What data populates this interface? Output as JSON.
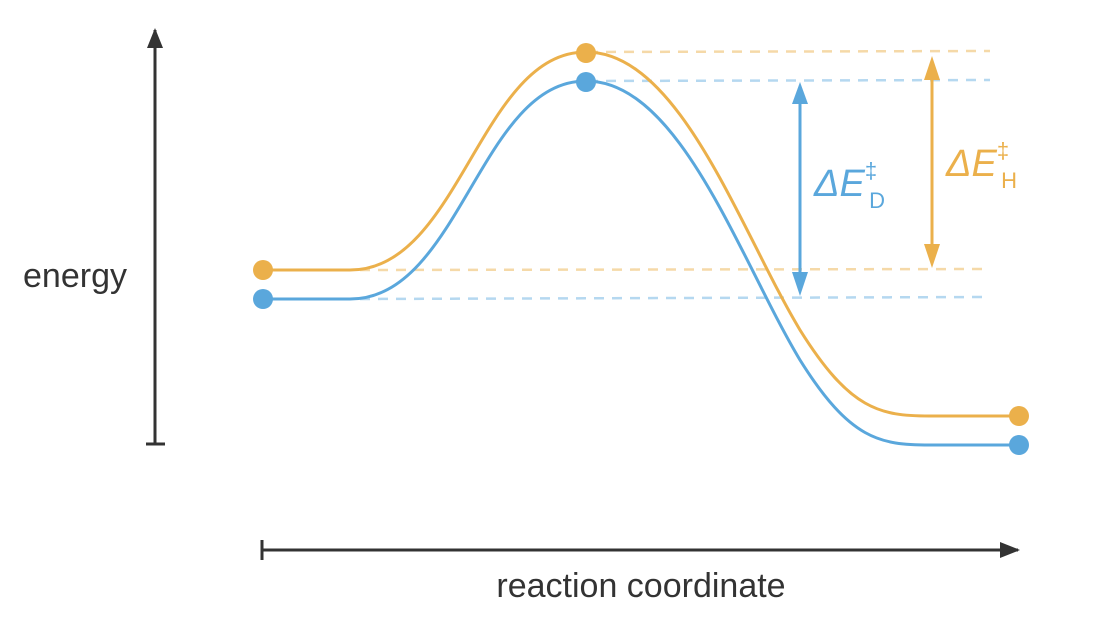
{
  "axes": {
    "y_label": "energy",
    "x_label": "reaction coordinate"
  },
  "colors": {
    "axis": "#333333",
    "orange": "#EBB04B",
    "blue": "#5AA7DC",
    "orange_light": "#F5D9A8",
    "blue_light": "#B5D8F0"
  },
  "annotations": {
    "orange": {
      "symbol": "ΔE",
      "superscript": "‡",
      "subscript": "H"
    },
    "blue": {
      "symbol": "ΔE",
      "superscript": "‡",
      "subscript": "D"
    }
  }
}
